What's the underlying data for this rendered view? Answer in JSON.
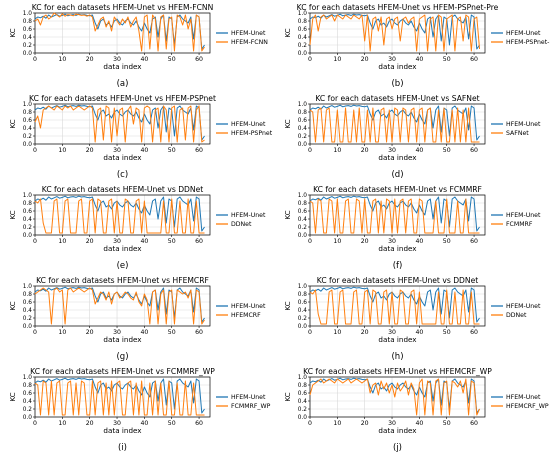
{
  "figure": {
    "colors": {
      "hfem": "#1f77b4",
      "other": "#ff7f0e",
      "grid": "#d9d9d9",
      "axis": "#000000"
    },
    "shared_x": [
      0,
      1,
      2,
      3,
      4,
      5,
      6,
      7,
      8,
      9,
      10,
      11,
      12,
      13,
      14,
      15,
      16,
      17,
      18,
      19,
      20,
      21,
      22,
      23,
      24,
      25,
      26,
      27,
      28,
      29,
      30,
      31,
      32,
      33,
      34,
      35,
      36,
      37,
      38,
      39,
      40,
      41,
      42,
      43,
      44,
      45,
      46,
      47,
      48,
      49,
      50,
      51,
      52,
      53,
      54,
      55,
      56,
      57,
      58,
      59,
      60,
      61,
      62
    ],
    "hfem_values": [
      0.85,
      0.9,
      0.88,
      0.92,
      0.87,
      0.95,
      0.9,
      0.93,
      0.96,
      0.92,
      0.94,
      0.97,
      0.93,
      0.95,
      0.96,
      0.94,
      0.97,
      0.95,
      0.96,
      0.94,
      0.93,
      0.95,
      0.75,
      0.6,
      0.8,
      0.85,
      0.7,
      0.75,
      0.65,
      0.8,
      0.85,
      0.75,
      0.7,
      0.8,
      0.85,
      0.75,
      0.7,
      0.8,
      0.65,
      0.55,
      0.75,
      0.6,
      0.5,
      0.85,
      0.9,
      0.4,
      0.85,
      0.95,
      0.3,
      0.9,
      0.85,
      0.2,
      0.9,
      0.95,
      0.85,
      0.8,
      0.75,
      0.9,
      0.35,
      0.95,
      0.9,
      0.1,
      0.2
    ]
  },
  "chart_data": [
    {
      "type": "line",
      "label": "(a)",
      "title": "KC for each datasets HFEM-Unet vs HFEM-FCNN",
      "xlabel": "data index",
      "ylabel": "KC",
      "xticks": [
        0,
        10,
        20,
        30,
        40,
        50,
        60
      ],
      "yticks": [
        "0.0",
        "0.2",
        "0.4",
        "0.6",
        "0.8",
        "1.0"
      ],
      "ylim": [
        0,
        1.0
      ],
      "grid": true,
      "legend_position": "right",
      "series": [
        {
          "name": "HFEM-Unet",
          "role": "hfem"
        },
        {
          "name": "HFEM-FCNN",
          "role": "other",
          "values": [
            0.8,
            0.85,
            0.7,
            0.9,
            0.95,
            0.85,
            0.9,
            1.0,
            0.95,
            0.9,
            0.98,
            0.92,
            0.96,
            0.95,
            0.93,
            0.97,
            0.96,
            0.94,
            0.95,
            0.92,
            0.95,
            0.9,
            0.55,
            0.7,
            0.85,
            0.9,
            0.65,
            0.8,
            0.55,
            0.9,
            0.8,
            0.7,
            0.85,
            0.75,
            0.9,
            0.65,
            0.8,
            0.9,
            0.55,
            0.05,
            0.9,
            0.95,
            0.1,
            0.95,
            0.85,
            0.05,
            0.9,
            0.95,
            0.1,
            0.85,
            0.9,
            0.05,
            0.95,
            0.9,
            0.7,
            0.95,
            0.6,
            0.85,
            0.05,
            0.95,
            0.9,
            0.05,
            0.15
          ]
        }
      ]
    },
    {
      "type": "line",
      "label": "(b)",
      "title": "KC for each datasets HFEM-Unet vs HFEM-PSPnet-Pre",
      "xlabel": "data index",
      "ylabel": "KC",
      "xticks": [
        0,
        10,
        20,
        30,
        40,
        50,
        60
      ],
      "yticks": [
        "0.0",
        "0.2",
        "0.4",
        "0.6",
        "0.8",
        "1.0"
      ],
      "ylim": [
        0,
        1.0
      ],
      "grid": true,
      "legend_position": "right",
      "series": [
        {
          "name": "HFEM-Unet",
          "role": "hfem"
        },
        {
          "name": "HFEM-PSPnet-Pre",
          "role": "other",
          "values": [
            0.2,
            0.85,
            0.95,
            0.55,
            0.9,
            0.95,
            0.85,
            0.9,
            0.95,
            0.8,
            0.95,
            0.9,
            0.85,
            0.95,
            0.9,
            0.85,
            0.95,
            0.9,
            0.85,
            0.95,
            0.3,
            0.95,
            0.05,
            0.85,
            0.9,
            0.55,
            0.9,
            0.2,
            0.85,
            0.9,
            0.6,
            0.85,
            0.9,
            0.3,
            0.85,
            0.9,
            0.75,
            0.85,
            0.9,
            0.05,
            0.85,
            0.9,
            0.95,
            0.05,
            0.85,
            0.9,
            0.05,
            0.95,
            0.9,
            0.05,
            0.85,
            0.9,
            0.95,
            0.05,
            0.85,
            0.9,
            0.3,
            0.95,
            0.9,
            0.05,
            0.85,
            0.9,
            0.1
          ]
        }
      ]
    },
    {
      "type": "line",
      "label": "(c)",
      "title": "KC for each datasets HFEM-Unet vs HFEM-PSPnet",
      "xlabel": "data index",
      "ylabel": "KC",
      "xticks": [
        0,
        10,
        20,
        30,
        40,
        50,
        60
      ],
      "yticks": [
        "0.0",
        "0.2",
        "0.4",
        "0.6",
        "0.8",
        "1.0"
      ],
      "ylim": [
        0,
        1.0
      ],
      "grid": true,
      "legend_position": "right",
      "series": [
        {
          "name": "HFEM-Unet",
          "role": "hfem"
        },
        {
          "name": "HFEM-PSPnet",
          "role": "other",
          "values": [
            0.55,
            0.7,
            0.4,
            0.85,
            0.9,
            0.95,
            0.9,
            0.85,
            0.95,
            0.9,
            0.85,
            0.95,
            0.9,
            0.95,
            0.85,
            0.9,
            0.95,
            0.9,
            0.85,
            0.9,
            0.95,
            0.9,
            0.05,
            0.85,
            0.9,
            0.1,
            0.95,
            0.9,
            0.05,
            0.9,
            0.2,
            0.85,
            0.9,
            0.05,
            0.85,
            0.95,
            0.5,
            0.9,
            0.85,
            0.05,
            0.9,
            0.95,
            0.9,
            0.05,
            0.85,
            0.9,
            0.05,
            0.95,
            0.85,
            0.05,
            0.9,
            0.95,
            0.05,
            0.85,
            0.9,
            0.1,
            0.9,
            0.95,
            0.05,
            0.85,
            0.95,
            0.05,
            0.1
          ]
        }
      ]
    },
    {
      "type": "line",
      "label": "(d)",
      "title": "KC for each datasets HFEM-Unet vs SAFNet",
      "xlabel": "data index",
      "ylabel": "KC",
      "xticks": [
        0,
        10,
        20,
        30,
        40,
        50,
        60
      ],
      "yticks": [
        "0.0",
        "0.2",
        "0.4",
        "0.6",
        "0.8",
        "1.0"
      ],
      "ylim": [
        0,
        1.0
      ],
      "grid": true,
      "legend_position": "right",
      "series": [
        {
          "name": "HFEM-Unet",
          "role": "hfem"
        },
        {
          "name": "SAFNet",
          "role": "other",
          "values": [
            0.85,
            0.8,
            0.05,
            0.85,
            0.9,
            0.05,
            0.85,
            0.9,
            0.05,
            0.05,
            0.85,
            0.05,
            0.05,
            0.9,
            0.05,
            0.05,
            0.85,
            0.05,
            0.9,
            0.05,
            0.05,
            0.85,
            0.05,
            0.9,
            0.05,
            0.05,
            0.85,
            0.9,
            0.05,
            0.85,
            0.05,
            0.9,
            0.85,
            0.05,
            0.9,
            0.85,
            0.05,
            0.85,
            0.9,
            0.05,
            0.85,
            0.9,
            0.05,
            0.85,
            0.9,
            0.05,
            0.05,
            0.85,
            0.05,
            0.9,
            0.05,
            0.05,
            0.85,
            0.05,
            0.9,
            0.05,
            0.85,
            0.05,
            0.9,
            0.05,
            0.05,
            0.05,
            0.05
          ]
        }
      ]
    },
    {
      "type": "line",
      "label": "(e)",
      "title": "KC for each datasets HFEM-Unet vs DDNet",
      "xlabel": "data index",
      "ylabel": "KC",
      "xticks": [
        0,
        10,
        20,
        30,
        40,
        50,
        60
      ],
      "yticks": [
        "0.0",
        "0.2",
        "0.4",
        "0.6",
        "0.8",
        "1.0"
      ],
      "ylim": [
        0,
        1.0
      ],
      "grid": true,
      "legend_position": "right",
      "series": [
        {
          "name": "HFEM-Unet",
          "role": "hfem"
        },
        {
          "name": "DDNet",
          "role": "other",
          "values": [
            0.85,
            0.8,
            0.9,
            0.3,
            0.05,
            0.05,
            0.05,
            0.85,
            0.9,
            0.05,
            0.05,
            0.85,
            0.9,
            0.05,
            0.05,
            0.05,
            0.85,
            0.9,
            0.05,
            0.05,
            0.85,
            0.9,
            0.05,
            0.9,
            0.85,
            0.05,
            0.05,
            0.85,
            0.9,
            0.05,
            0.85,
            0.05,
            0.05,
            0.9,
            0.85,
            0.05,
            0.05,
            0.85,
            0.9,
            0.05,
            0.85,
            0.05,
            0.05,
            0.05,
            0.05,
            0.05,
            0.05,
            0.85,
            0.05,
            0.05,
            0.9,
            0.05,
            0.05,
            0.85,
            0.05,
            0.05,
            0.9,
            0.05,
            0.05,
            0.85,
            0.05,
            0.05,
            0.05
          ]
        }
      ]
    },
    {
      "type": "line",
      "label": "(f)",
      "title": "KC for each datasets HFEM-Unet vs FCMMRF",
      "xlabel": "data index",
      "ylabel": "KC",
      "xticks": [
        0,
        10,
        20,
        30,
        40,
        50,
        60
      ],
      "yticks": [
        "0.0",
        "0.2",
        "0.4",
        "0.6",
        "0.8",
        "1.0"
      ],
      "ylim": [
        0,
        1.0
      ],
      "grid": true,
      "legend_position": "right",
      "series": [
        {
          "name": "HFEM-Unet",
          "role": "hfem"
        },
        {
          "name": "FCMMRF",
          "role": "other",
          "values": [
            0.85,
            0.8,
            0.05,
            0.9,
            0.85,
            0.05,
            0.05,
            0.9,
            0.85,
            0.05,
            0.9,
            0.05,
            0.05,
            0.85,
            0.9,
            0.05,
            0.05,
            0.9,
            0.85,
            0.05,
            0.9,
            0.05,
            0.05,
            0.85,
            0.9,
            0.05,
            0.85,
            0.05,
            0.9,
            0.85,
            0.05,
            0.9,
            0.05,
            0.85,
            0.9,
            0.05,
            0.85,
            0.9,
            0.05,
            0.05,
            0.9,
            0.85,
            0.05,
            0.05,
            0.05,
            0.05,
            0.85,
            0.05,
            0.05,
            0.05,
            0.9,
            0.05,
            0.05,
            0.05,
            0.85,
            0.05,
            0.05,
            0.9,
            0.05,
            0.05,
            0.05,
            0.05,
            0.05
          ]
        }
      ]
    },
    {
      "type": "line",
      "label": "(g)",
      "title": "KC for each datasets HFEM-Unet vs HFEMCRF",
      "xlabel": "data index",
      "ylabel": "KC",
      "xticks": [
        0,
        10,
        20,
        30,
        40,
        50,
        60
      ],
      "yticks": [
        "0.0",
        "0.2",
        "0.4",
        "0.6",
        "0.8",
        "1.0"
      ],
      "ylim": [
        0,
        1.0
      ],
      "grid": true,
      "legend_position": "right",
      "series": [
        {
          "name": "HFEM-Unet",
          "role": "hfem"
        },
        {
          "name": "HFEMCRF",
          "role": "other",
          "values": [
            0.8,
            0.85,
            0.9,
            0.95,
            0.9,
            0.85,
            0.05,
            0.9,
            0.95,
            0.85,
            0.9,
            0.05,
            0.9,
            0.95,
            0.85,
            0.9,
            0.95,
            0.9,
            0.85,
            0.9,
            0.95,
            0.9,
            0.55,
            0.7,
            0.85,
            0.8,
            0.65,
            0.85,
            0.55,
            0.8,
            0.85,
            0.7,
            0.75,
            0.85,
            0.8,
            0.7,
            0.65,
            0.85,
            0.6,
            0.5,
            0.8,
            0.65,
            0.05,
            0.85,
            0.9,
            0.05,
            0.8,
            0.9,
            0.05,
            0.85,
            0.9,
            0.05,
            0.9,
            0.85,
            0.8,
            0.85,
            0.7,
            0.9,
            0.05,
            0.9,
            0.85,
            0.05,
            0.15
          ]
        }
      ]
    },
    {
      "type": "line",
      "label": "(h)",
      "title": "KC for each datasets HFEM-Unet vs DDNet",
      "xlabel": "data index",
      "ylabel": "KC",
      "xticks": [
        0,
        10,
        20,
        30,
        40,
        50,
        60
      ],
      "yticks": [
        "0.0",
        "0.2",
        "0.4",
        "0.6",
        "0.8",
        "1.0"
      ],
      "ylim": [
        0,
        1.0
      ],
      "grid": true,
      "legend_position": "right",
      "series": [
        {
          "name": "HFEM-Unet",
          "role": "hfem"
        },
        {
          "name": "DDNet",
          "role": "other",
          "values": [
            0.85,
            0.8,
            0.9,
            0.3,
            0.05,
            0.05,
            0.05,
            0.85,
            0.9,
            0.05,
            0.05,
            0.85,
            0.9,
            0.05,
            0.05,
            0.05,
            0.85,
            0.9,
            0.05,
            0.05,
            0.85,
            0.9,
            0.05,
            0.9,
            0.85,
            0.05,
            0.05,
            0.85,
            0.9,
            0.05,
            0.85,
            0.05,
            0.05,
            0.9,
            0.85,
            0.05,
            0.05,
            0.85,
            0.9,
            0.05,
            0.85,
            0.05,
            0.05,
            0.05,
            0.05,
            0.05,
            0.05,
            0.85,
            0.05,
            0.05,
            0.9,
            0.05,
            0.05,
            0.85,
            0.05,
            0.05,
            0.9,
            0.05,
            0.05,
            0.85,
            0.05,
            0.05,
            0.05
          ]
        }
      ]
    },
    {
      "type": "line",
      "label": "(i)",
      "title": "KC for each datasets HFEM-Unet vs FCMMRF_WP",
      "xlabel": "data index",
      "ylabel": "KC",
      "xticks": [
        0,
        10,
        20,
        30,
        40,
        50,
        60
      ],
      "yticks": [
        "0.0",
        "0.2",
        "0.4",
        "0.6",
        "0.8",
        "1.0"
      ],
      "ylim": [
        0,
        1.0
      ],
      "grid": true,
      "legend_position": "right",
      "series": [
        {
          "name": "HFEM-Unet",
          "role": "hfem"
        },
        {
          "name": "FCMMRF_WP",
          "role": "other",
          "values": [
            0.85,
            0.8,
            0.05,
            0.9,
            0.85,
            0.05,
            0.9,
            0.05,
            0.85,
            0.9,
            0.05,
            0.05,
            0.85,
            0.9,
            0.05,
            0.85,
            0.05,
            0.9,
            0.85,
            0.05,
            0.05,
            0.9,
            0.05,
            0.85,
            0.9,
            0.05,
            0.85,
            0.05,
            0.9,
            0.05,
            0.85,
            0.9,
            0.05,
            0.05,
            0.85,
            0.9,
            0.05,
            0.85,
            0.05,
            0.9,
            0.05,
            0.05,
            0.85,
            0.05,
            0.9,
            0.05,
            0.85,
            0.05,
            0.05,
            0.9,
            0.05,
            0.05,
            0.85,
            0.05,
            0.05,
            0.9,
            0.05,
            0.05,
            0.85,
            0.05,
            0.05,
            0.05,
            0.05
          ]
        }
      ]
    },
    {
      "type": "line",
      "label": "(j)",
      "title": "KC for each datasets HFEM-Unet vs HFEMCRF_WP",
      "xlabel": "data index",
      "ylabel": "KC",
      "xticks": [
        0,
        10,
        20,
        30,
        40,
        50,
        60
      ],
      "yticks": [
        "0.0",
        "0.2",
        "0.4",
        "0.6",
        "0.8",
        "1.0"
      ],
      "ylim": [
        0,
        1.0
      ],
      "grid": true,
      "legend_position": "right",
      "series": [
        {
          "name": "HFEM-Unet",
          "role": "hfem"
        },
        {
          "name": "HFEMCRF_WP",
          "role": "other",
          "values": [
            0.55,
            0.8,
            0.85,
            0.9,
            0.95,
            0.85,
            0.9,
            0.95,
            0.9,
            0.85,
            0.95,
            0.9,
            0.85,
            0.9,
            0.95,
            0.85,
            0.9,
            0.95,
            0.9,
            0.85,
            0.9,
            0.95,
            0.6,
            0.8,
            0.85,
            0.55,
            0.9,
            0.7,
            0.85,
            0.6,
            0.8,
            0.5,
            0.85,
            0.65,
            0.75,
            0.9,
            0.55,
            0.85,
            0.7,
            0.05,
            0.85,
            0.95,
            0.05,
            0.9,
            0.85,
            0.05,
            0.9,
            0.95,
            0.05,
            0.85,
            0.9,
            0.05,
            0.9,
            0.85,
            0.75,
            0.9,
            0.6,
            0.95,
            0.05,
            0.9,
            0.85,
            0.05,
            0.2
          ]
        }
      ]
    }
  ]
}
